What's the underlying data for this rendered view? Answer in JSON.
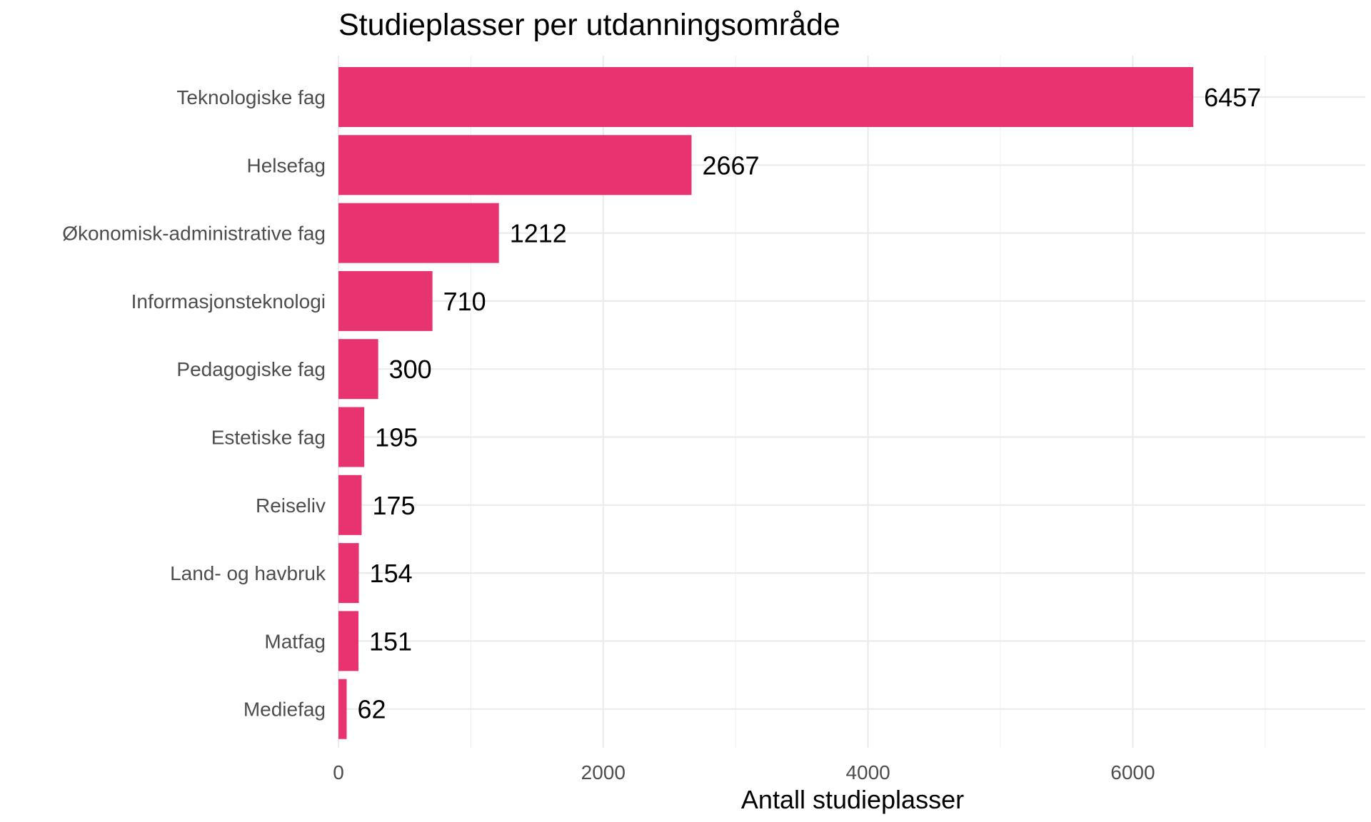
{
  "chart_data": {
    "type": "bar",
    "orientation": "horizontal",
    "title": "Studieplasser per utdanningsområde",
    "xlabel": "Antall studieplasser",
    "ylabel": "",
    "categories": [
      "Teknologiske fag",
      "Helsefag",
      "Økonomisk-administrative fag",
      "Informasjonsteknologi",
      "Pedagogiske fag",
      "Estetiske fag",
      "Reiseliv",
      "Land- og havbruk",
      "Matfag",
      "Mediefag"
    ],
    "values": [
      6457,
      2667,
      1212,
      710,
      300,
      195,
      175,
      154,
      151,
      62
    ],
    "data_labels": [
      "6457",
      "2667",
      "1212",
      "710",
      "300",
      "195",
      "175",
      "154",
      "151",
      "62"
    ],
    "xlim": [
      0,
      7750
    ],
    "x_ticks": [
      0,
      2000,
      4000,
      6000
    ],
    "x_tick_labels": [
      "0",
      "2000",
      "4000",
      "6000"
    ],
    "x_minor_ticks": [
      1000,
      3000,
      5000,
      7000
    ],
    "grid": true,
    "legend": "none",
    "bar_color": "#e83371"
  }
}
